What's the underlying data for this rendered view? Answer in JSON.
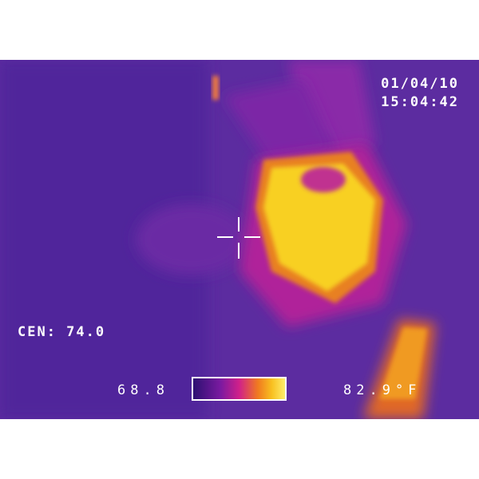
{
  "overlay": {
    "date": "01/04/10",
    "time": "15:04:42",
    "center_reading": "CEN: 74.0",
    "scale_min": "68.8",
    "scale_max": "82.9°F"
  }
}
